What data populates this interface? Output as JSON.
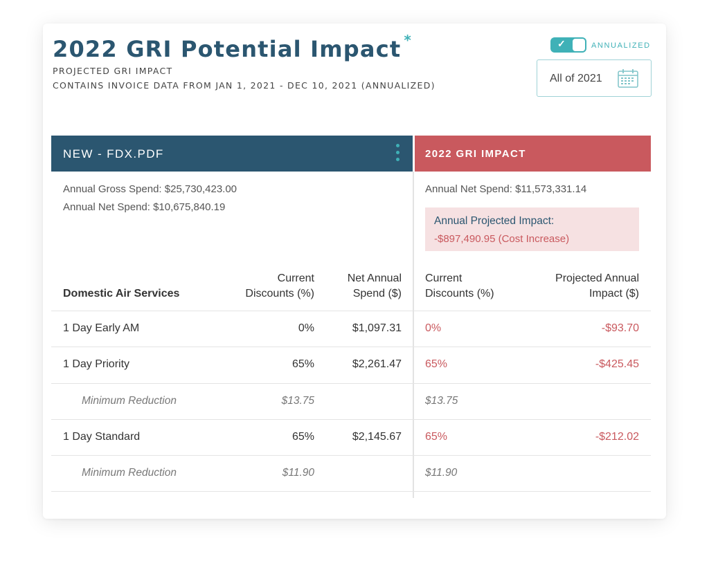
{
  "header": {
    "title": "2022 GRI Potential Impact",
    "title_marker": "*",
    "subtitle_1": "PROJECTED GRI IMPACT",
    "subtitle_2": "CONTAINS INVOICE DATA FROM JAN 1, 2021 - DEC 10, 2021 (ANNUALIZED)",
    "toggle_label": "ANNUALIZED",
    "toggle_on": true,
    "date_filter": "All of 2021",
    "calendar_icon": "calendar-icon",
    "toggle_icon": "checkmark-icon"
  },
  "left_panel": {
    "title": "NEW - FDX.PDF",
    "menu_icon": "vertical-dots-icon",
    "gross_spend": "Annual Gross Spend: $25,730,423.00",
    "net_spend": "Annual Net Spend: $10,675,840.19"
  },
  "right_panel": {
    "title": "2022 GRI IMPACT",
    "net_spend": "Annual Net Spend: $11,573,331.14",
    "impact_label": "Annual Projected Impact:",
    "impact_value": "-$897,490.95  (Cost Increase)"
  },
  "columns": {
    "service": "Domestic Air Services",
    "current_disc_l1": "Current",
    "current_disc_l2": "Discounts (%)",
    "net_annual_l1": "Net Annual",
    "net_annual_l2": "Spend ($)",
    "r_current_l1": "Current",
    "r_current_l2": "Discounts (%)",
    "projected_l1": "Projected Annual",
    "projected_l2": "Impact ($)"
  },
  "rows": [
    {
      "name": "1 Day Early AM",
      "discount": "0%",
      "spend": "$1,097.31",
      "r_discount": "0%",
      "impact": "-$93.70"
    },
    {
      "name": "1 Day Priority",
      "discount": "65%",
      "spend": "$2,261.47",
      "r_discount": "65%",
      "impact": "-$425.45"
    },
    {
      "name": "Minimum Reduction",
      "discount": "$13.75",
      "spend": "",
      "r_discount": "$13.75",
      "impact": ""
    },
    {
      "name": "1 Day Standard",
      "discount": "65%",
      "spend": "$2,145.67",
      "r_discount": "65%",
      "impact": "-$212.02"
    },
    {
      "name": "Minimum Reduction",
      "discount": "$11.90",
      "spend": "",
      "r_discount": "$11.90",
      "impact": ""
    }
  ],
  "colors": {
    "navy": "#2b5670",
    "teal": "#3fb1b7",
    "red": "#c9595e",
    "pink_bg": "#f6e1e2"
  }
}
